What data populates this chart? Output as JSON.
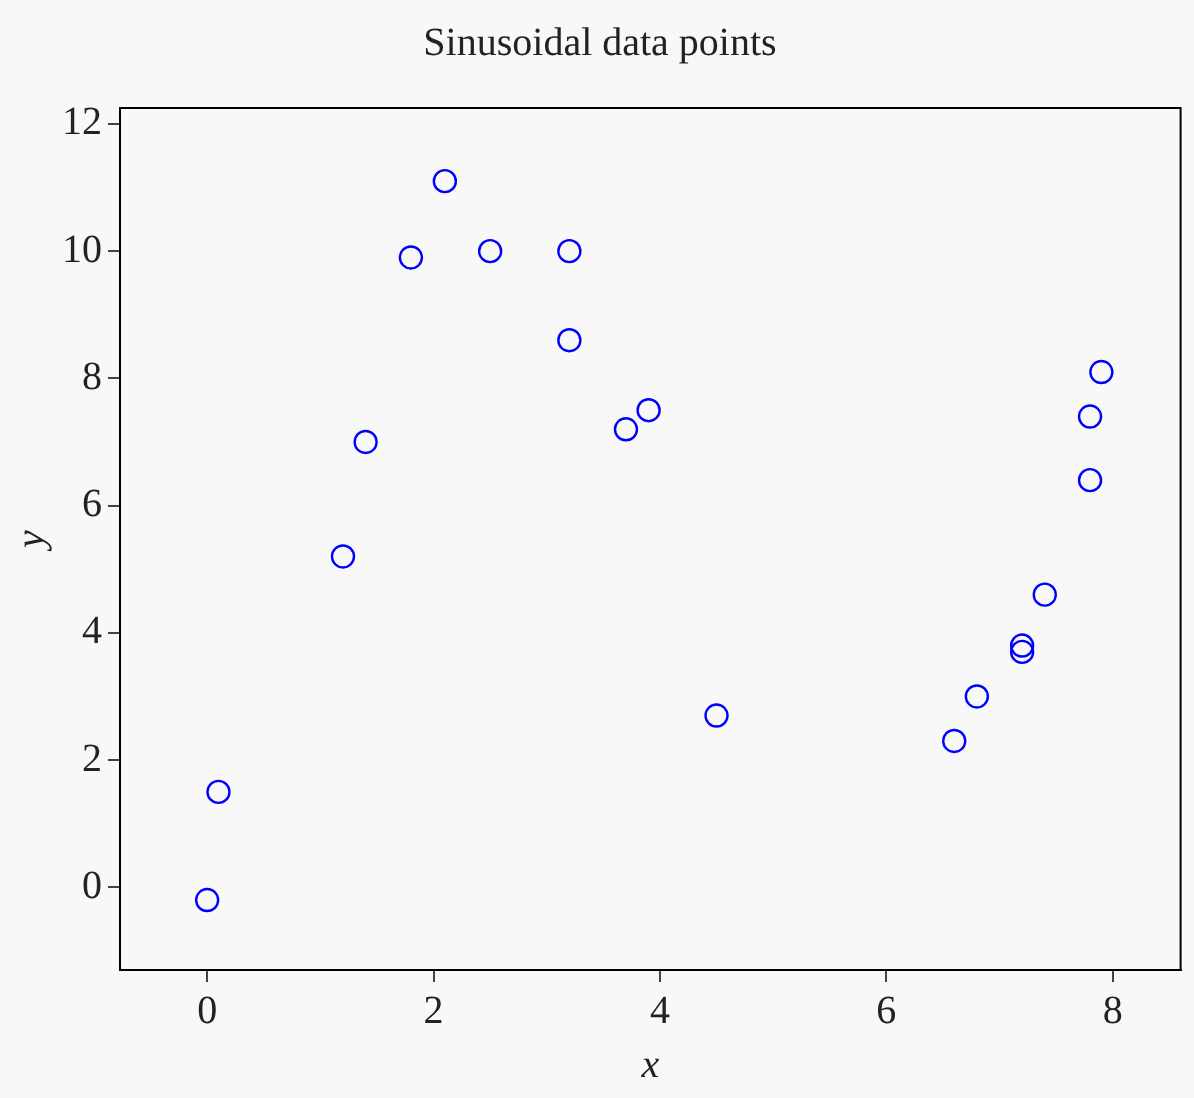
{
  "chart_data": {
    "type": "scatter",
    "title": "Sinusoidal data points",
    "xlabel": "x",
    "ylabel": "y",
    "x": [
      0,
      0.1,
      1.2,
      1.4,
      1.8,
      2.1,
      2.5,
      3.2,
      3.2,
      3.7,
      3.9,
      4.5,
      6.6,
      6.8,
      7.2,
      7.2,
      7.4,
      7.8,
      7.8,
      7.9
    ],
    "series": [
      {
        "color": "#0000ff",
        "values": [
          -0.2,
          1.5,
          5.2,
          7.0,
          9.9,
          11.1,
          10.0,
          10.0,
          8.6,
          7.2,
          7.5,
          2.7,
          2.3,
          3.0,
          3.8,
          3.7,
          4.6,
          6.4,
          7.4,
          8.1
        ]
      }
    ],
    "xlim": [
      -0.77,
      8.6
    ],
    "xticks": [
      0,
      2,
      4,
      6,
      8
    ],
    "ylim": [
      -1.3,
      12.25
    ],
    "yticks": [
      0,
      2,
      4,
      6,
      8,
      10,
      12
    ],
    "grid": false,
    "legend": false,
    "marker": "circle"
  }
}
